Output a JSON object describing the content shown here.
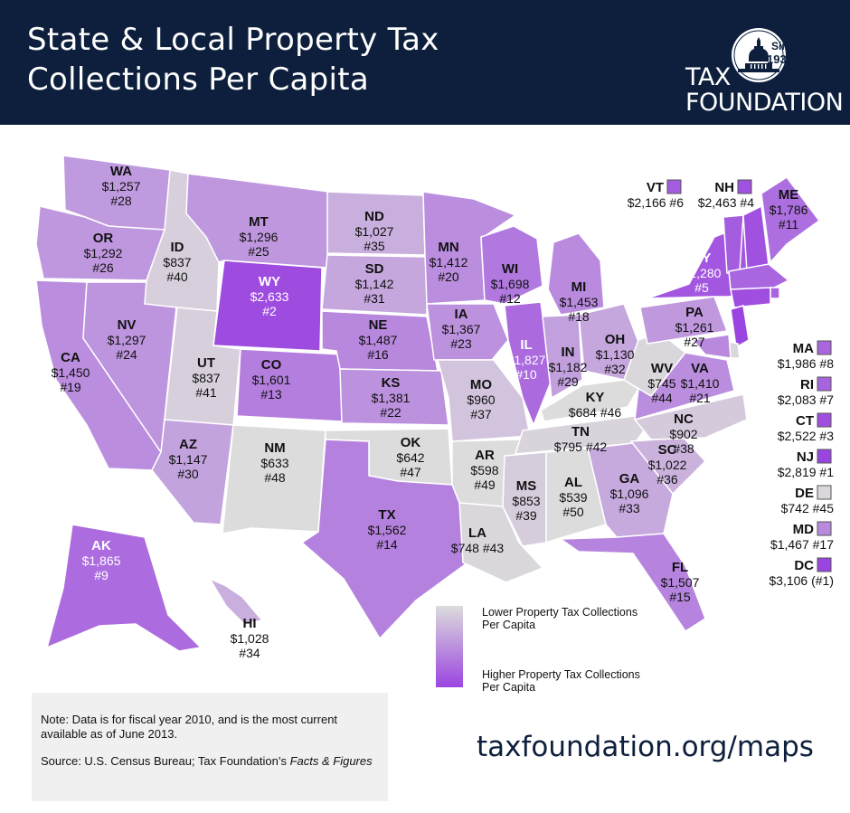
{
  "header": {
    "title_line1": "State & Local Property Tax",
    "title_line2": "Collections Per Capita"
  },
  "logo": {
    "seal_since": "Since",
    "seal_year": "1937",
    "name_line1": "TAX",
    "name_line2": "FOUNDATION"
  },
  "colors": {
    "header_bg": "#0d1f3c",
    "low": "#dcdcdc",
    "high": "#9b45e0"
  },
  "states": [
    {
      "abbr": "WA",
      "value": "$1,257",
      "rank": "#28",
      "level": 0.44
    },
    {
      "abbr": "OR",
      "value": "$1,292",
      "rank": "#26",
      "level": 0.46
    },
    {
      "abbr": "CA",
      "value": "$1,450",
      "rank": "#19",
      "level": 0.52
    },
    {
      "abbr": "NV",
      "value": "$1,297",
      "rank": "#24",
      "level": 0.47
    },
    {
      "abbr": "ID",
      "value": "$837",
      "rank": "#40",
      "level": 0.08
    },
    {
      "abbr": "MT",
      "value": "$1,296",
      "rank": "#25",
      "level": 0.46
    },
    {
      "abbr": "WY",
      "value": "$2,633",
      "rank": "#2",
      "level": 0.96
    },
    {
      "abbr": "UT",
      "value": "$837",
      "rank": "#41",
      "level": 0.08
    },
    {
      "abbr": "AZ",
      "value": "$1,147",
      "rank": "#30",
      "level": 0.38
    },
    {
      "abbr": "CO",
      "value": "$1,601",
      "rank": "#13",
      "level": 0.62
    },
    {
      "abbr": "NM",
      "value": "$633",
      "rank": "#48",
      "level": 0.0
    },
    {
      "abbr": "ND",
      "value": "$1,027",
      "rank": "#35",
      "level": 0.3
    },
    {
      "abbr": "SD",
      "value": "$1,142",
      "rank": "#31",
      "level": 0.36
    },
    {
      "abbr": "NE",
      "value": "$1,487",
      "rank": "#16",
      "level": 0.56
    },
    {
      "abbr": "KS",
      "value": "$1,381",
      "rank": "#22",
      "level": 0.5
    },
    {
      "abbr": "OK",
      "value": "$642",
      "rank": "#47",
      "level": 0.0
    },
    {
      "abbr": "TX",
      "value": "$1,562",
      "rank": "#14",
      "level": 0.6
    },
    {
      "abbr": "MN",
      "value": "$1,412",
      "rank": "#20",
      "level": 0.52
    },
    {
      "abbr": "IA",
      "value": "$1,367",
      "rank": "#23",
      "level": 0.5
    },
    {
      "abbr": "MO",
      "value": "$960",
      "rank": "#37",
      "level": 0.16
    },
    {
      "abbr": "AR",
      "value": "$598",
      "rank": "#49",
      "level": 0.0
    },
    {
      "abbr": "LA",
      "value": "$748",
      "rank": "#43",
      "level": 0.03
    },
    {
      "abbr": "WI",
      "value": "$1,698",
      "rank": "#12",
      "level": 0.66
    },
    {
      "abbr": "IL",
      "value": "$1,827",
      "rank": "#10",
      "level": 0.75
    },
    {
      "abbr": "MI",
      "value": "$1,453",
      "rank": "#18",
      "level": 0.54
    },
    {
      "abbr": "IN",
      "value": "$1,182",
      "rank": "#29",
      "level": 0.4
    },
    {
      "abbr": "OH",
      "value": "$1,130",
      "rank": "#32",
      "level": 0.36
    },
    {
      "abbr": "KY",
      "value": "$684",
      "rank": "#46",
      "level": 0.0
    },
    {
      "abbr": "TN",
      "value": "$795",
      "rank": "#42",
      "level": 0.05
    },
    {
      "abbr": "MS",
      "value": "$853",
      "rank": "#39",
      "level": 0.1
    },
    {
      "abbr": "AL",
      "value": "$539",
      "rank": "#50",
      "level": 0.0
    },
    {
      "abbr": "GA",
      "value": "$1,096",
      "rank": "#33",
      "level": 0.34
    },
    {
      "abbr": "FL",
      "value": "$1,507",
      "rank": "#15",
      "level": 0.58
    },
    {
      "abbr": "SC",
      "value": "$1,022",
      "rank": "#36",
      "level": 0.28
    },
    {
      "abbr": "NC",
      "value": "$902",
      "rank": "#38",
      "level": 0.12
    },
    {
      "abbr": "VA",
      "value": "$1,410",
      "rank": "#21",
      "level": 0.52
    },
    {
      "abbr": "WV",
      "value": "$745",
      "rank": "#44",
      "level": 0.03
    },
    {
      "abbr": "PA",
      "value": "$1,261",
      "rank": "#27",
      "level": 0.45
    },
    {
      "abbr": "NY",
      "value": "$2,280",
      "rank": "#5",
      "level": 0.88
    },
    {
      "abbr": "ME",
      "value": "$1,786",
      "rank": "#11",
      "level": 0.72
    },
    {
      "abbr": "AK",
      "value": "$1,865",
      "rank": "#9",
      "level": 0.74
    },
    {
      "abbr": "HI",
      "value": "$1,028",
      "rank": "#34",
      "level": 0.3
    }
  ],
  "small_states": [
    {
      "abbr": "VT",
      "value": "$2,166",
      "rank": "#6",
      "level": 0.84
    },
    {
      "abbr": "NH",
      "value": "$2,463",
      "rank": "#4",
      "level": 0.92
    },
    {
      "abbr": "MA",
      "value": "$1,986",
      "rank": "#8",
      "level": 0.78
    },
    {
      "abbr": "RI",
      "value": "$2,083",
      "rank": "#7",
      "level": 0.8
    },
    {
      "abbr": "CT",
      "value": "$2,522",
      "rank": "#3",
      "level": 0.94
    },
    {
      "abbr": "NJ",
      "value": "$2,819",
      "rank": "#1",
      "level": 1.0
    },
    {
      "abbr": "DE",
      "value": "$742",
      "rank": "#45",
      "level": 0.03
    },
    {
      "abbr": "MD",
      "value": "$1,467",
      "rank": "#17",
      "level": 0.55
    },
    {
      "abbr": "DC",
      "value": "$3,106",
      "rank": "(#1)",
      "level": 1.0
    }
  ],
  "legend": {
    "low_label_line1": "Lower Property Tax Collections",
    "low_label_line2": "Per Capita",
    "high_label_line1": "Higher Property Tax Collections",
    "high_label_line2": "Per Capita"
  },
  "note": {
    "text": "Note: Data is for fiscal year 2010, and is the most current available as of June 2013.",
    "source_prefix": "Source: U.S. Census Bureau; Tax Foundation’s ",
    "source_italic": "Facts & Figures"
  },
  "url": "taxfoundation.org/maps"
}
